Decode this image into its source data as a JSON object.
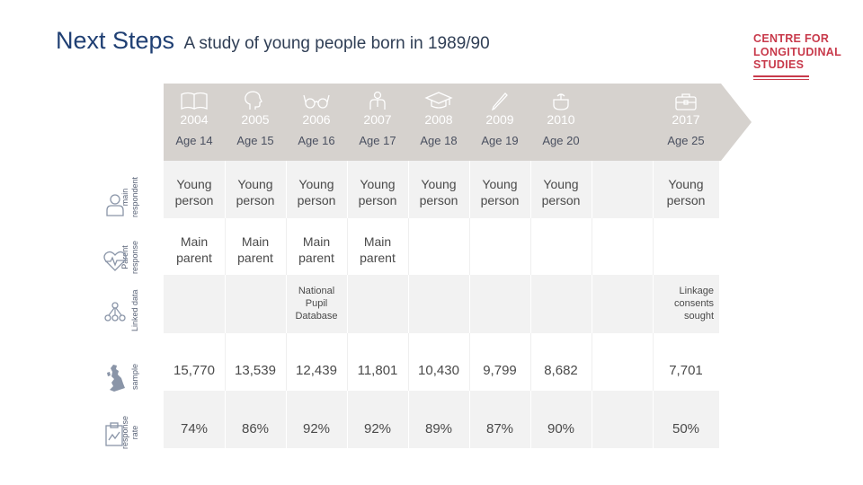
{
  "header": {
    "title": "Next Steps",
    "subtitle": "A study of young people born in 1989/90"
  },
  "logo": {
    "lines": [
      "CENTRE FOR",
      "LONGITUDINAL",
      "STUDIES"
    ]
  },
  "columns": [
    {
      "year": "2004",
      "age": "Age 14",
      "icon": "book-icon"
    },
    {
      "year": "2005",
      "age": "Age 15",
      "icon": "head-profile-icon"
    },
    {
      "year": "2006",
      "age": "Age 16",
      "icon": "glasses-icon"
    },
    {
      "year": "2007",
      "age": "Age 17",
      "icon": "person-tie-icon"
    },
    {
      "year": "2008",
      "age": "Age 18",
      "icon": "graduation-cap-icon"
    },
    {
      "year": "2009",
      "age": "Age 19",
      "icon": "pencil-icon"
    },
    {
      "year": "2010",
      "age": "Age 20",
      "icon": "pot-icon"
    },
    {
      "year": "",
      "age": "",
      "icon": ""
    },
    {
      "year": "2017",
      "age": "Age 25",
      "icon": "briefcase-icon"
    }
  ],
  "row_labels": {
    "main_respondent": [
      "main",
      "respondent"
    ],
    "parent_response": [
      "Parent",
      "response"
    ],
    "linked_data": "Linked data",
    "sample": "sample",
    "response_rate": [
      "response",
      "rate"
    ]
  },
  "rows": {
    "young_person": [
      "Young person",
      "Young person",
      "Young person",
      "Young person",
      "Young person",
      "Young person",
      "Young person",
      "",
      "Young person"
    ],
    "main_parent": [
      "Main parent",
      "Main parent",
      "Main parent",
      "Main parent",
      "",
      "",
      "",
      "",
      ""
    ],
    "linked": {
      "npd": "National Pupil Database",
      "linkage": "Linkage consents sought"
    },
    "sample": [
      "15,770",
      "13,539",
      "12,439",
      "11,801",
      "10,430",
      "9,799",
      "8,682",
      "",
      "7,701"
    ],
    "response_rate": [
      "74%",
      "86%",
      "92%",
      "92%",
      "89%",
      "87%",
      "90%",
      "",
      "50%"
    ]
  },
  "colors": {
    "title": "#1f3f73",
    "brand": "#c83a4b",
    "band": "#d6d2ce",
    "shade": "#f2f2f2"
  }
}
